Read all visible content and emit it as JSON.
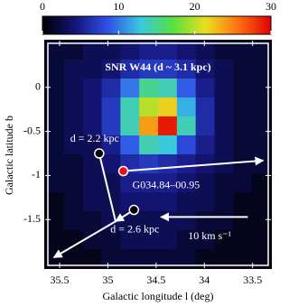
{
  "chart_data": {
    "type": "heatmap",
    "title": "SNR W44 (d ~ 3.1 kpc)",
    "x_label": "Galactic longitude l (deg)",
    "y_label": "Galactic latitude b",
    "xlim": [
      35.65,
      33.31
    ],
    "ylim": [
      -2.05,
      0.53
    ],
    "xticks": [
      35.5,
      35,
      34.5,
      34,
      33.5
    ],
    "yticks": [
      0,
      -0.5,
      -1,
      -1.5
    ],
    "clim": [
      0,
      30
    ],
    "cticks": [
      0,
      10,
      20,
      30
    ],
    "colormap": [
      "#000000",
      "#141478",
      "#3050e8",
      "#38c8e0",
      "#58e040",
      "#e8e020",
      "#ff7010",
      "#e00000"
    ],
    "z": [
      [
        2,
        2,
        3,
        3,
        4,
        5,
        5,
        4,
        3,
        2,
        2,
        2
      ],
      [
        2,
        3,
        3,
        4,
        6,
        7,
        7,
        6,
        4,
        3,
        2,
        2
      ],
      [
        2,
        3,
        4,
        6,
        10,
        15,
        14,
        9,
        5,
        3,
        2,
        2
      ],
      [
        2,
        3,
        4,
        7,
        14,
        20,
        22,
        12,
        6,
        3,
        2,
        2
      ],
      [
        2,
        3,
        4,
        7,
        14,
        24,
        29,
        14,
        6,
        3,
        2,
        2
      ],
      [
        2,
        3,
        3,
        5,
        9,
        14,
        13,
        8,
        5,
        3,
        2,
        2
      ],
      [
        2,
        2,
        3,
        4,
        6,
        7,
        6,
        5,
        4,
        3,
        2,
        2
      ],
      [
        2,
        2,
        3,
        3,
        5,
        5,
        5,
        4,
        3,
        2,
        2,
        1
      ],
      [
        1,
        2,
        3,
        3,
        4,
        4,
        4,
        3,
        3,
        2,
        1,
        1
      ],
      [
        1,
        2,
        2,
        3,
        3,
        3,
        3,
        3,
        2,
        2,
        1,
        1
      ],
      [
        1,
        1,
        2,
        2,
        3,
        3,
        3,
        2,
        2,
        1,
        1,
        1
      ],
      [
        1,
        1,
        1,
        2,
        2,
        2,
        2,
        2,
        1,
        1,
        1,
        1
      ]
    ],
    "points": [
      {
        "label": "d = 2.2 kpc",
        "x": 35.09,
        "y": -0.75,
        "color": "#ffffff"
      },
      {
        "label": "G034.84–00.95",
        "x": 34.84,
        "y": -0.95,
        "color": "#e81010"
      },
      {
        "label": "d = 2.6 kpc",
        "x": 34.73,
        "y": -1.39,
        "color": "#ffffff"
      }
    ],
    "vectors": [
      {
        "from": [
          34.84,
          -0.95
        ],
        "to": [
          33.39,
          -0.83
        ],
        "arrow": true
      },
      {
        "from": [
          35.09,
          -0.75
        ],
        "to": [
          34.92,
          -1.52
        ],
        "arrow": false
      },
      {
        "from": [
          34.73,
          -1.39
        ],
        "to": [
          34.92,
          -1.52
        ],
        "arrow": true
      },
      {
        "from": [
          34.92,
          -1.52
        ],
        "to": [
          35.56,
          -1.93
        ],
        "arrow": true
      },
      {
        "from": [
          33.55,
          -1.47
        ],
        "to": [
          34.45,
          -1.47
        ],
        "arrow": true,
        "label": "10 km s⁻¹"
      }
    ]
  }
}
